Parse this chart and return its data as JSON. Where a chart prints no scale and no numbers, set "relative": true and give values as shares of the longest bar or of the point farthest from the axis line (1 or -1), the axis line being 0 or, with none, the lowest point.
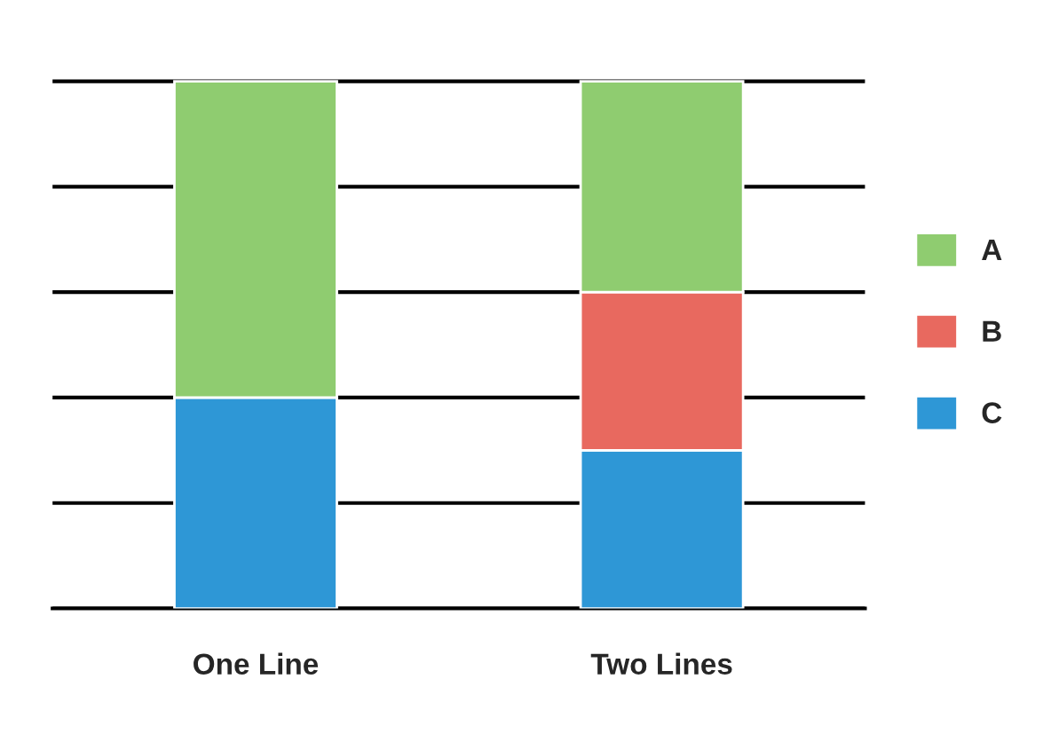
{
  "chart_data": {
    "type": "bar",
    "stacked": true,
    "relative": true,
    "grid": "y",
    "legend": "right",
    "categories": [
      "One Line",
      "Two Lines"
    ],
    "series": [
      {
        "name": "C",
        "color": "#2e97d6",
        "values": [
          0.4,
          0.3
        ]
      },
      {
        "name": "B",
        "color": "#e8695f",
        "values": [
          null,
          0.3
        ]
      },
      {
        "name": "A",
        "color": "#8fcc70",
        "values": [
          0.6,
          0.4
        ]
      }
    ]
  }
}
